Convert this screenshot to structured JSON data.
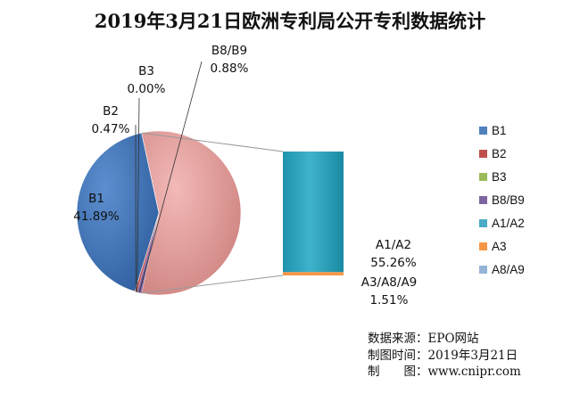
{
  "title": "2019年3月21日欧洲专利局公开专利数据统计",
  "colors": {
    "B1": "#4f81bd",
    "B2": "#c0504d",
    "B3": "#9bbb59",
    "B8/B9": "#8064a2",
    "A1/A2": "#4bacc6",
    "A3": "#f79646",
    "A8/A9": "#95b3d7",
    "secondary_slice": "#e09c9a"
  },
  "chart_data": {
    "type": "pie",
    "subtype": "pie-of-bar",
    "title": "2019年3月21日欧洲专利局公开专利数据统计",
    "slices": [
      {
        "name": "B1",
        "value": 41.89,
        "label": "41.89%"
      },
      {
        "name": "B2",
        "value": 0.47,
        "label": "0.47%"
      },
      {
        "name": "B3",
        "value": 0.0,
        "label": "0.00%"
      },
      {
        "name": "B8/B9",
        "value": 0.88,
        "label": "0.88%"
      }
    ],
    "secondary_slice_value": 56.77,
    "breakout_bar": [
      {
        "name": "A1/A2",
        "value": 55.26,
        "label": "55.26%"
      },
      {
        "name": "A3/A8/A9",
        "value": 1.51,
        "label": "1.51%"
      }
    ],
    "legend": [
      "B1",
      "B2",
      "B3",
      "B8/B9",
      "A1/A2",
      "A3",
      "A8/A9"
    ],
    "legend_position": "right",
    "unit": "%"
  },
  "source": {
    "line1_label": "数据来源：",
    "line1_value": "EPO网站",
    "line2_label": "制图时间：",
    "line2_value": "2019年3月21日",
    "line3_label": "制　　图：",
    "line3_value": "www.cnipr.com"
  }
}
